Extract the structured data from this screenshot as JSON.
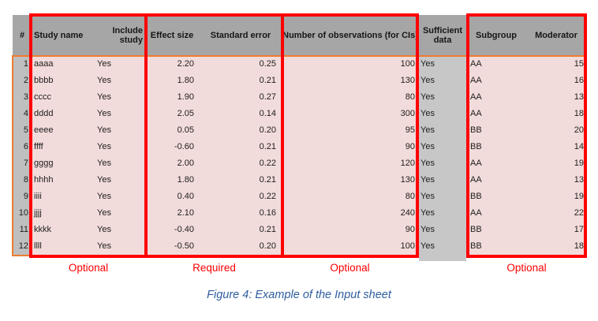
{
  "figure": {
    "caption": "Figure 4: Example of the Input sheet"
  },
  "annotations": {
    "labels": [
      "Optional",
      "Required",
      "Optional",
      "Optional"
    ]
  },
  "sheet": {
    "columns": [
      "#",
      "Study name",
      "Include study",
      "Effect size",
      "Standard error",
      "Number of observations (for CIs)",
      "Sufficient data",
      "Subgroup",
      "Moderator"
    ],
    "rows": [
      [
        "1",
        "aaaa",
        "Yes",
        "2.20",
        "0.25",
        "100",
        "Yes",
        "AA",
        "15"
      ],
      [
        "2",
        "bbbb",
        "Yes",
        "1.80",
        "0.21",
        "130",
        "Yes",
        "AA",
        "16"
      ],
      [
        "3",
        "cccc",
        "Yes",
        "1.90",
        "0.27",
        "80",
        "Yes",
        "AA",
        "13"
      ],
      [
        "4",
        "dddd",
        "Yes",
        "2.05",
        "0.14",
        "300",
        "Yes",
        "AA",
        "18"
      ],
      [
        "5",
        "eeee",
        "Yes",
        "0.05",
        "0.20",
        "95",
        "Yes",
        "BB",
        "20"
      ],
      [
        "6",
        "ffff",
        "Yes",
        "-0.60",
        "0.21",
        "90",
        "Yes",
        "BB",
        "14"
      ],
      [
        "7",
        "gggg",
        "Yes",
        "2.00",
        "0.22",
        "120",
        "Yes",
        "AA",
        "19"
      ],
      [
        "8",
        "hhhh",
        "Yes",
        "1.80",
        "0.21",
        "130",
        "Yes",
        "AA",
        "13"
      ],
      [
        "9",
        "iiii",
        "Yes",
        "0.40",
        "0.22",
        "80",
        "Yes",
        "BB",
        "19"
      ],
      [
        "10",
        "jjjj",
        "Yes",
        "2.10",
        "0.16",
        "240",
        "Yes",
        "AA",
        "22"
      ],
      [
        "11",
        "kkkk",
        "Yes",
        "-0.40",
        "0.21",
        "90",
        "Yes",
        "BB",
        "17"
      ],
      [
        "12",
        "llll",
        "Yes",
        "-0.50",
        "0.20",
        "100",
        "Yes",
        "BB",
        "18"
      ]
    ]
  },
  "colors": {
    "header_bg": "#a6a6a6",
    "row_number_bg": "#bfbfbf",
    "sufficient_bg": "#c7c7c7",
    "input_cell_bg": "#f2dcdb",
    "annotation_red": "#fe0000",
    "range_outline_orange": "#ed7d31",
    "caption_blue": "#2e5d9e"
  }
}
